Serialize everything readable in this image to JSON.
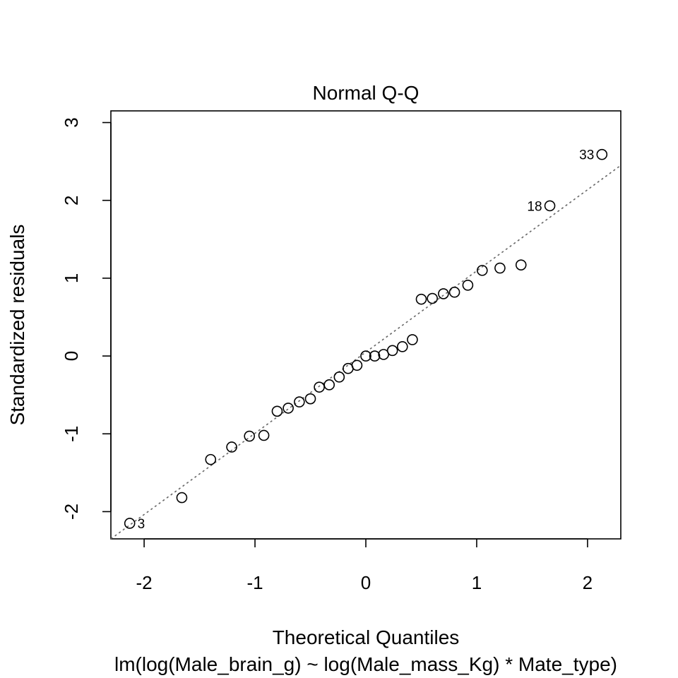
{
  "chart_data": {
    "type": "scatter",
    "title": "Normal Q-Q",
    "xlabel": "Theoretical Quantiles",
    "subtitle": "lm(log(Male_brain_g) ~ log(Male_mass_Kg) * Mate_type)",
    "ylabel": "Standardized residuals",
    "xlim": [
      -2.3,
      2.3
    ],
    "ylim": [
      -2.35,
      3.15
    ],
    "x_ticks": [
      "-2",
      "-1",
      "0",
      "1",
      "2"
    ],
    "y_ticks": [
      "-2",
      "-1",
      "0",
      "1",
      "2",
      "3"
    ],
    "grid": false,
    "reference_line": {
      "style": "dotted",
      "color": "#666666",
      "points": [
        [
          -2.3,
          -2.35
        ],
        [
          2.3,
          2.45
        ]
      ]
    },
    "points": [
      {
        "x": -2.13,
        "y": -2.15,
        "label": "3"
      },
      {
        "x": -1.66,
        "y": -1.82
      },
      {
        "x": -1.4,
        "y": -1.33
      },
      {
        "x": -1.21,
        "y": -1.17
      },
      {
        "x": -1.05,
        "y": -1.03
      },
      {
        "x": -0.92,
        "y": -1.02
      },
      {
        "x": -0.8,
        "y": -0.71
      },
      {
        "x": -0.7,
        "y": -0.67
      },
      {
        "x": -0.6,
        "y": -0.59
      },
      {
        "x": -0.5,
        "y": -0.55
      },
      {
        "x": -0.42,
        "y": -0.4
      },
      {
        "x": -0.33,
        "y": -0.37
      },
      {
        "x": -0.24,
        "y": -0.27
      },
      {
        "x": -0.16,
        "y": -0.16
      },
      {
        "x": -0.08,
        "y": -0.12
      },
      {
        "x": 0.0,
        "y": 0.0
      },
      {
        "x": 0.08,
        "y": 0.0
      },
      {
        "x": 0.16,
        "y": 0.02
      },
      {
        "x": 0.24,
        "y": 0.07
      },
      {
        "x": 0.33,
        "y": 0.12
      },
      {
        "x": 0.42,
        "y": 0.21
      },
      {
        "x": 0.5,
        "y": 0.73
      },
      {
        "x": 0.6,
        "y": 0.74
      },
      {
        "x": 0.7,
        "y": 0.8
      },
      {
        "x": 0.8,
        "y": 0.82
      },
      {
        "x": 0.92,
        "y": 0.91
      },
      {
        "x": 1.05,
        "y": 1.1
      },
      {
        "x": 1.21,
        "y": 1.13
      },
      {
        "x": 1.4,
        "y": 1.17
      },
      {
        "x": 1.66,
        "y": 1.93,
        "label": "18"
      },
      {
        "x": 2.13,
        "y": 2.59,
        "label": "33"
      }
    ]
  }
}
